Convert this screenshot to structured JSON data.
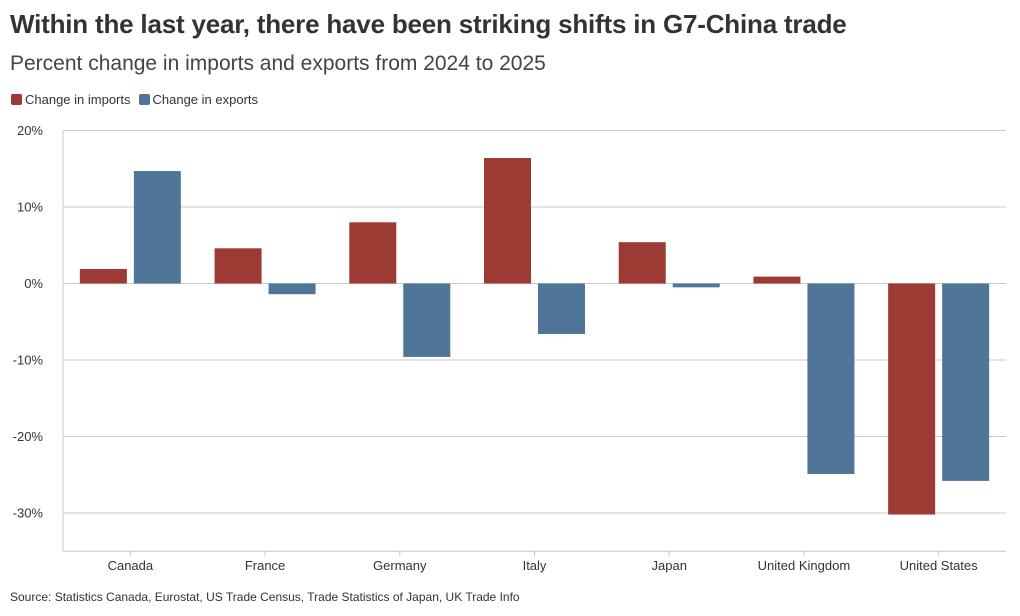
{
  "title": "Within the last year, there have been striking shifts in G7-China trade",
  "subtitle": "Percent change in imports and exports from 2024 to 2025",
  "source": "Source: Statistics Canada, Eurostat, US Trade Census, Trade Statistics of Japan, UK Trade Info",
  "chart_data": {
    "type": "bar",
    "title": "Within the last year, there have been striking shifts in G7-China trade",
    "subtitle": "Percent change in imports and exports from 2024 to 2025",
    "xlabel": "",
    "ylabel": "",
    "categories": [
      "Canada",
      "France",
      "Germany",
      "Italy",
      "Japan",
      "United Kingdom",
      "United States"
    ],
    "series": [
      {
        "name": "Change in imports",
        "color": "#9c3a33",
        "values": [
          1.9,
          4.6,
          8.0,
          16.4,
          5.4,
          0.9,
          -30.2
        ]
      },
      {
        "name": "Change in exports",
        "color": "#4f7699",
        "values": [
          14.7,
          -1.4,
          -9.6,
          -6.6,
          -0.5,
          -24.9,
          -25.8
        ]
      }
    ],
    "ylim": [
      -35,
      20
    ],
    "yticks": [
      20,
      10,
      0,
      -10,
      -20,
      -30
    ],
    "ytick_labels": [
      "20%",
      "10%",
      "0%",
      "-10%",
      "-20%",
      "-30%"
    ],
    "grid": true,
    "legend_position": "top-left"
  }
}
